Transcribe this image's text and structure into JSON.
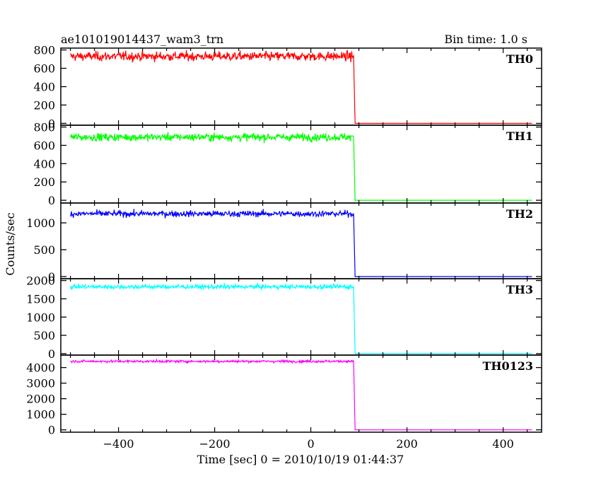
{
  "header": {
    "title": "ae101019014437_wam3_trn",
    "bin_time": "Bin time: 1.0 s"
  },
  "axes": {
    "ylabel": "Counts/sec",
    "xlabel": "Time [sec] 0 = 2010/10/19 01:44:37"
  },
  "chart_data": {
    "type": "line",
    "x_range": [
      -520,
      480
    ],
    "x_ticks": [
      -400,
      -200,
      0,
      200,
      400
    ],
    "bin_time_s": 1.0,
    "drop_time": 92,
    "t_start": -500,
    "t_end": 460,
    "panels": [
      {
        "name": "TH0",
        "color": "#ff0000",
        "level": 730,
        "noise": 35,
        "ylim": [
          -20,
          820
        ],
        "ticks": [
          0,
          200,
          400,
          600,
          800
        ]
      },
      {
        "name": "TH1",
        "color": "#00ff00",
        "level": 690,
        "noise": 30,
        "ylim": [
          -30,
          820
        ],
        "ticks": [
          0,
          200,
          400,
          600,
          800
        ]
      },
      {
        "name": "TH2",
        "color": "#0000ff",
        "level": 1170,
        "noise": 40,
        "ylim": [
          -40,
          1370
        ],
        "ticks": [
          0,
          500,
          1000
        ]
      },
      {
        "name": "TH3",
        "color": "#00ffff",
        "level": 1830,
        "noise": 45,
        "ylim": [
          -40,
          2050
        ],
        "ticks": [
          0,
          500,
          1000,
          1500,
          2000
        ]
      },
      {
        "name": "TH0123",
        "color": "#ff00ff",
        "level": 4400,
        "noise": 55,
        "ylim": [
          -150,
          4800
        ],
        "ticks": [
          0,
          1000,
          2000,
          3000,
          4000
        ]
      }
    ]
  }
}
